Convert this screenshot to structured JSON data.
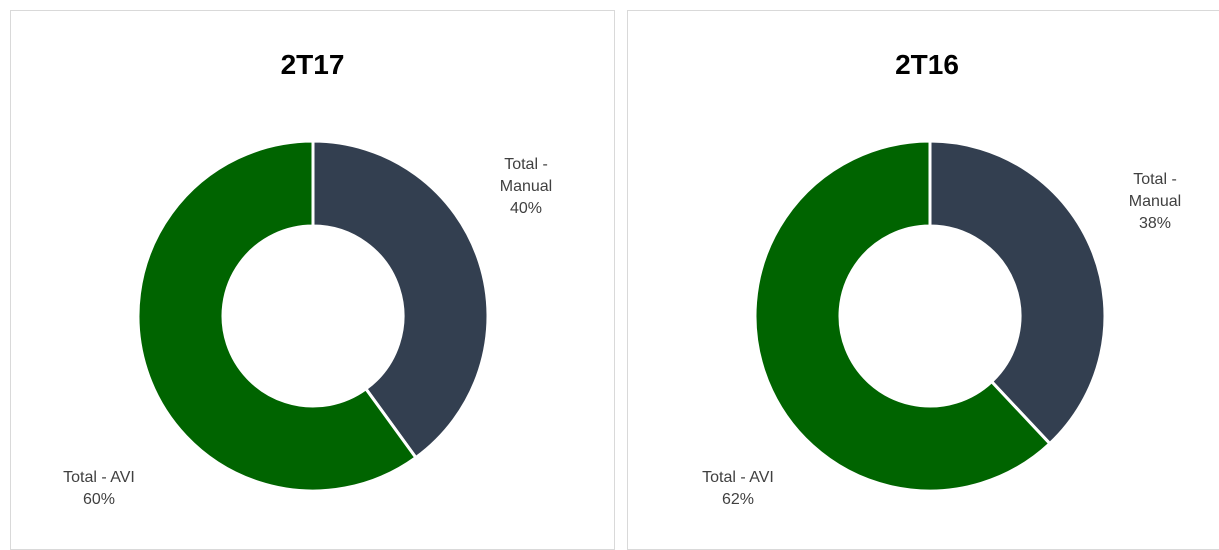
{
  "chart_data": [
    {
      "type": "donut",
      "title": "2T17",
      "categories": [
        "Total - Manual",
        "Total - AVI"
      ],
      "values": [
        40,
        60
      ],
      "value_labels": [
        "40%",
        "60%"
      ],
      "colors": [
        "#333f50",
        "#006400"
      ]
    },
    {
      "type": "donut",
      "title": "2T16",
      "categories": [
        "Total - Manual",
        "Total - AVI"
      ],
      "values": [
        38,
        62
      ],
      "value_labels": [
        "38%",
        "62%"
      ],
      "colors": [
        "#333f50",
        "#006400"
      ]
    }
  ]
}
